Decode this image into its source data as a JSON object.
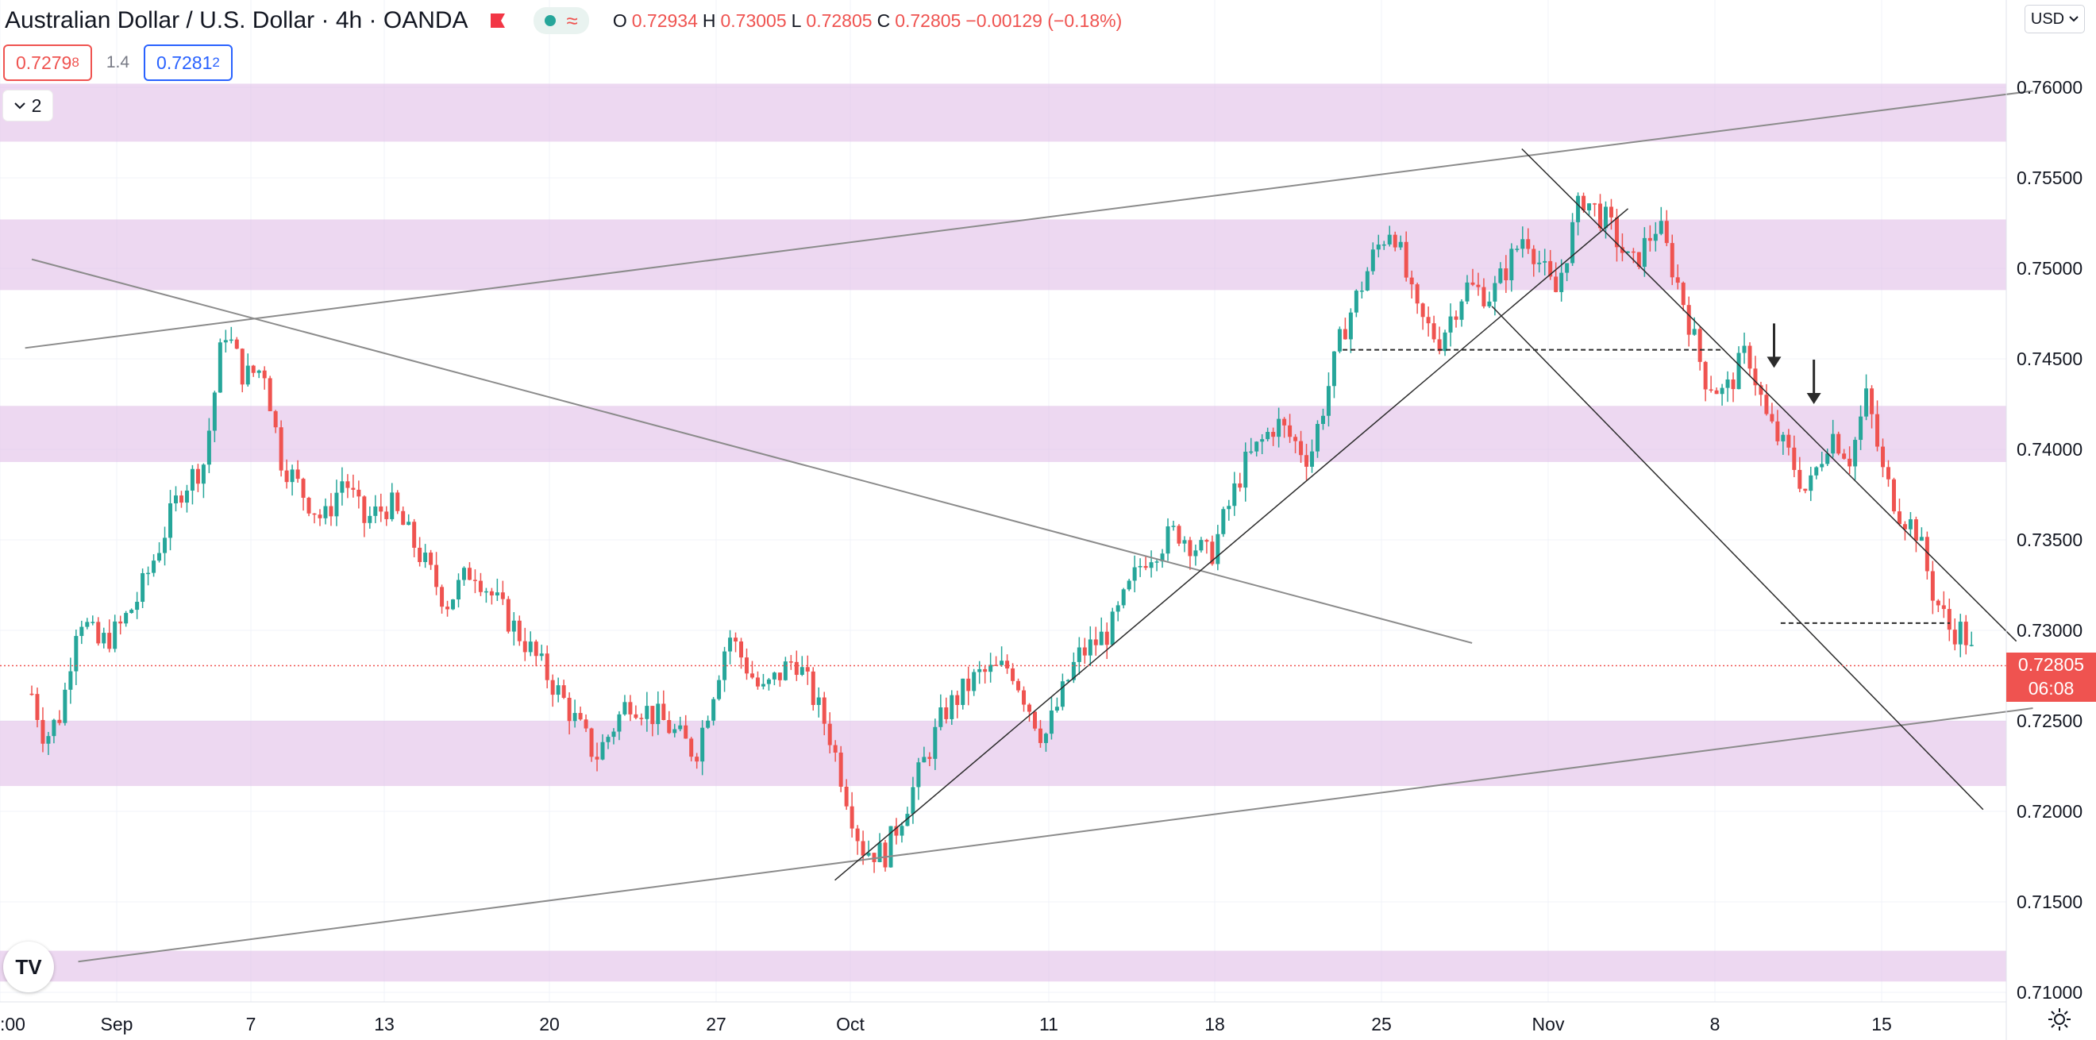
{
  "legend": {
    "symbol": "Australian Dollar / U.S. Dollar",
    "interval": "4h",
    "broker": "OANDA",
    "ohlc": [
      {
        "label": "O",
        "value": "0.72934"
      },
      {
        "label": "H",
        "value": "0.73005"
      },
      {
        "label": "L",
        "value": "0.72805"
      },
      {
        "label": "C",
        "value": "0.72805"
      }
    ],
    "change": "−0.00129 (−0.18%)"
  },
  "trade": {
    "sell_main": "0.7279",
    "sell_small": "8",
    "spread": "1.4",
    "buy_main": "0.7281",
    "buy_small": "2"
  },
  "indicators_collapsed_count": "2",
  "currency_label": "USD",
  "last_price": {
    "value": "0.72805",
    "countdown": "06:08"
  },
  "colors": {
    "up": "#26a69a",
    "down": "#ef5350",
    "zone": "#e1bee7",
    "trendline": "#8b8b8b",
    "channel": "#2b2b2b",
    "grid": "#f0f3fa"
  },
  "chart_data": {
    "type": "candlestick",
    "symbol": "Australian Dollar / U.S. Dollar",
    "interval": "4h",
    "y_range": [
      0.7098,
      0.762
    ],
    "y_ticks": [
      "0.76000",
      "0.75500",
      "0.75000",
      "0.74500",
      "0.74000",
      "0.73500",
      "0.73000",
      "0.72500",
      "0.72000",
      "0.71500",
      "0.71000"
    ],
    "x_ticks": [
      ":00",
      "Sep",
      "7",
      "13",
      "20",
      "27",
      "Oct",
      "11",
      "18",
      "25",
      "Nov",
      "8",
      "15"
    ],
    "zones": [
      [
        0.757,
        0.7602
      ],
      [
        0.7488,
        0.7527
      ],
      [
        0.7393,
        0.7424
      ],
      [
        0.7214,
        0.725
      ],
      [
        0.7106,
        0.7123
      ]
    ],
    "close_path": [
      {
        "x": 0.0,
        "close": 0.7265
      },
      {
        "x": 0.4,
        "close": 0.724
      },
      {
        "x": 0.9,
        "close": 0.7255
      },
      {
        "x": 1.4,
        "close": 0.731
      },
      {
        "x": 2.0,
        "close": 0.7292
      },
      {
        "x": 2.6,
        "close": 0.73
      },
      {
        "x": 3.2,
        "close": 0.7318
      },
      {
        "x": 3.8,
        "close": 0.7345
      },
      {
        "x": 4.5,
        "close": 0.7378
      },
      {
        "x": 5.2,
        "close": 0.7393
      },
      {
        "x": 5.8,
        "close": 0.7468
      },
      {
        "x": 6.4,
        "close": 0.744
      },
      {
        "x": 7.0,
        "close": 0.7445
      },
      {
        "x": 7.5,
        "close": 0.7395
      },
      {
        "x": 8.2,
        "close": 0.7375
      },
      {
        "x": 8.8,
        "close": 0.736
      },
      {
        "x": 9.4,
        "close": 0.7385
      },
      {
        "x": 10.0,
        "close": 0.736
      },
      {
        "x": 10.8,
        "close": 0.737
      },
      {
        "x": 11.6,
        "close": 0.7345
      },
      {
        "x": 12.5,
        "close": 0.7315
      },
      {
        "x": 13.3,
        "close": 0.7335
      },
      {
        "x": 14.2,
        "close": 0.731
      },
      {
        "x": 15.0,
        "close": 0.729
      },
      {
        "x": 16.0,
        "close": 0.7262
      },
      {
        "x": 17.0,
        "close": 0.723
      },
      {
        "x": 18.0,
        "close": 0.7262
      },
      {
        "x": 19.0,
        "close": 0.725
      },
      {
        "x": 20.0,
        "close": 0.7232
      },
      {
        "x": 21.0,
        "close": 0.7298
      },
      {
        "x": 22.0,
        "close": 0.7265
      },
      {
        "x": 23.0,
        "close": 0.7285
      },
      {
        "x": 24.0,
        "close": 0.7245
      },
      {
        "x": 25.0,
        "close": 0.718
      },
      {
        "x": 25.7,
        "close": 0.7176
      },
      {
        "x": 26.5,
        "close": 0.721
      },
      {
        "x": 27.5,
        "close": 0.7255
      },
      {
        "x": 28.5,
        "close": 0.7275
      },
      {
        "x": 29.5,
        "close": 0.728
      },
      {
        "x": 30.5,
        "close": 0.724
      },
      {
        "x": 31.5,
        "close": 0.7285
      },
      {
        "x": 32.5,
        "close": 0.73
      },
      {
        "x": 33.5,
        "close": 0.734
      },
      {
        "x": 34.5,
        "close": 0.7355
      },
      {
        "x": 35.5,
        "close": 0.734
      },
      {
        "x": 36.5,
        "close": 0.739
      },
      {
        "x": 37.5,
        "close": 0.7415
      },
      {
        "x": 38.5,
        "close": 0.7395
      },
      {
        "x": 39.5,
        "close": 0.7465
      },
      {
        "x": 40.5,
        "close": 0.751
      },
      {
        "x": 41.0,
        "close": 0.7525
      },
      {
        "x": 41.7,
        "close": 0.7475
      },
      {
        "x": 42.4,
        "close": 0.746
      },
      {
        "x": 43.2,
        "close": 0.749
      },
      {
        "x": 44.0,
        "close": 0.7485
      },
      {
        "x": 45.0,
        "close": 0.752
      },
      {
        "x": 45.9,
        "close": 0.7485
      },
      {
        "x": 46.7,
        "close": 0.754
      },
      {
        "x": 47.5,
        "close": 0.7525
      },
      {
        "x": 48.2,
        "close": 0.75
      },
      {
        "x": 49.0,
        "close": 0.7525
      },
      {
        "x": 49.8,
        "close": 0.748
      },
      {
        "x": 50.4,
        "close": 0.744
      },
      {
        "x": 51.0,
        "close": 0.743
      },
      {
        "x": 51.7,
        "close": 0.7455
      },
      {
        "x": 52.3,
        "close": 0.7415
      },
      {
        "x": 53.0,
        "close": 0.7395
      },
      {
        "x": 53.5,
        "close": 0.7375
      },
      {
        "x": 54.2,
        "close": 0.741
      },
      {
        "x": 54.8,
        "close": 0.7395
      },
      {
        "x": 55.3,
        "close": 0.743
      },
      {
        "x": 55.8,
        "close": 0.7385
      },
      {
        "x": 56.3,
        "close": 0.7365
      },
      {
        "x": 56.8,
        "close": 0.7355
      },
      {
        "x": 57.3,
        "close": 0.732
      },
      {
        "x": 57.8,
        "close": 0.73
      },
      {
        "x": 58.2,
        "close": 0.73
      },
      {
        "x": 58.6,
        "close": 0.728
      }
    ],
    "drawings": {
      "rising_channel_upper": [
        [
          -0.2,
          0.7456
        ],
        [
          60.3,
          0.7598
        ]
      ],
      "rising_channel_lower": [
        [
          1.4,
          0.7117
        ],
        [
          60.3,
          0.7257
        ]
      ],
      "falling_trendline": [
        [
          0.0,
          0.7505
        ],
        [
          43.4,
          0.7293
        ]
      ],
      "uptrend_line": [
        [
          24.2,
          0.7162
        ],
        [
          48.1,
          0.7533
        ]
      ],
      "down_channel_upper": [
        [
          44.9,
          0.7566
        ],
        [
          59.8,
          0.7294
        ]
      ],
      "down_channel_lower": [
        [
          44.0,
          0.7479
        ],
        [
          58.8,
          0.7201
        ]
      ],
      "support_dashed": [
        [
          39.5,
          0.7455
        ],
        [
          51.0,
          0.7455
        ]
      ],
      "resistance_dashed": [
        [
          52.7,
          0.7304
        ],
        [
          57.8,
          0.7304
        ]
      ],
      "arrows": [
        [
          52.5,
          0.7445
        ],
        [
          53.7,
          0.7425
        ]
      ]
    }
  }
}
